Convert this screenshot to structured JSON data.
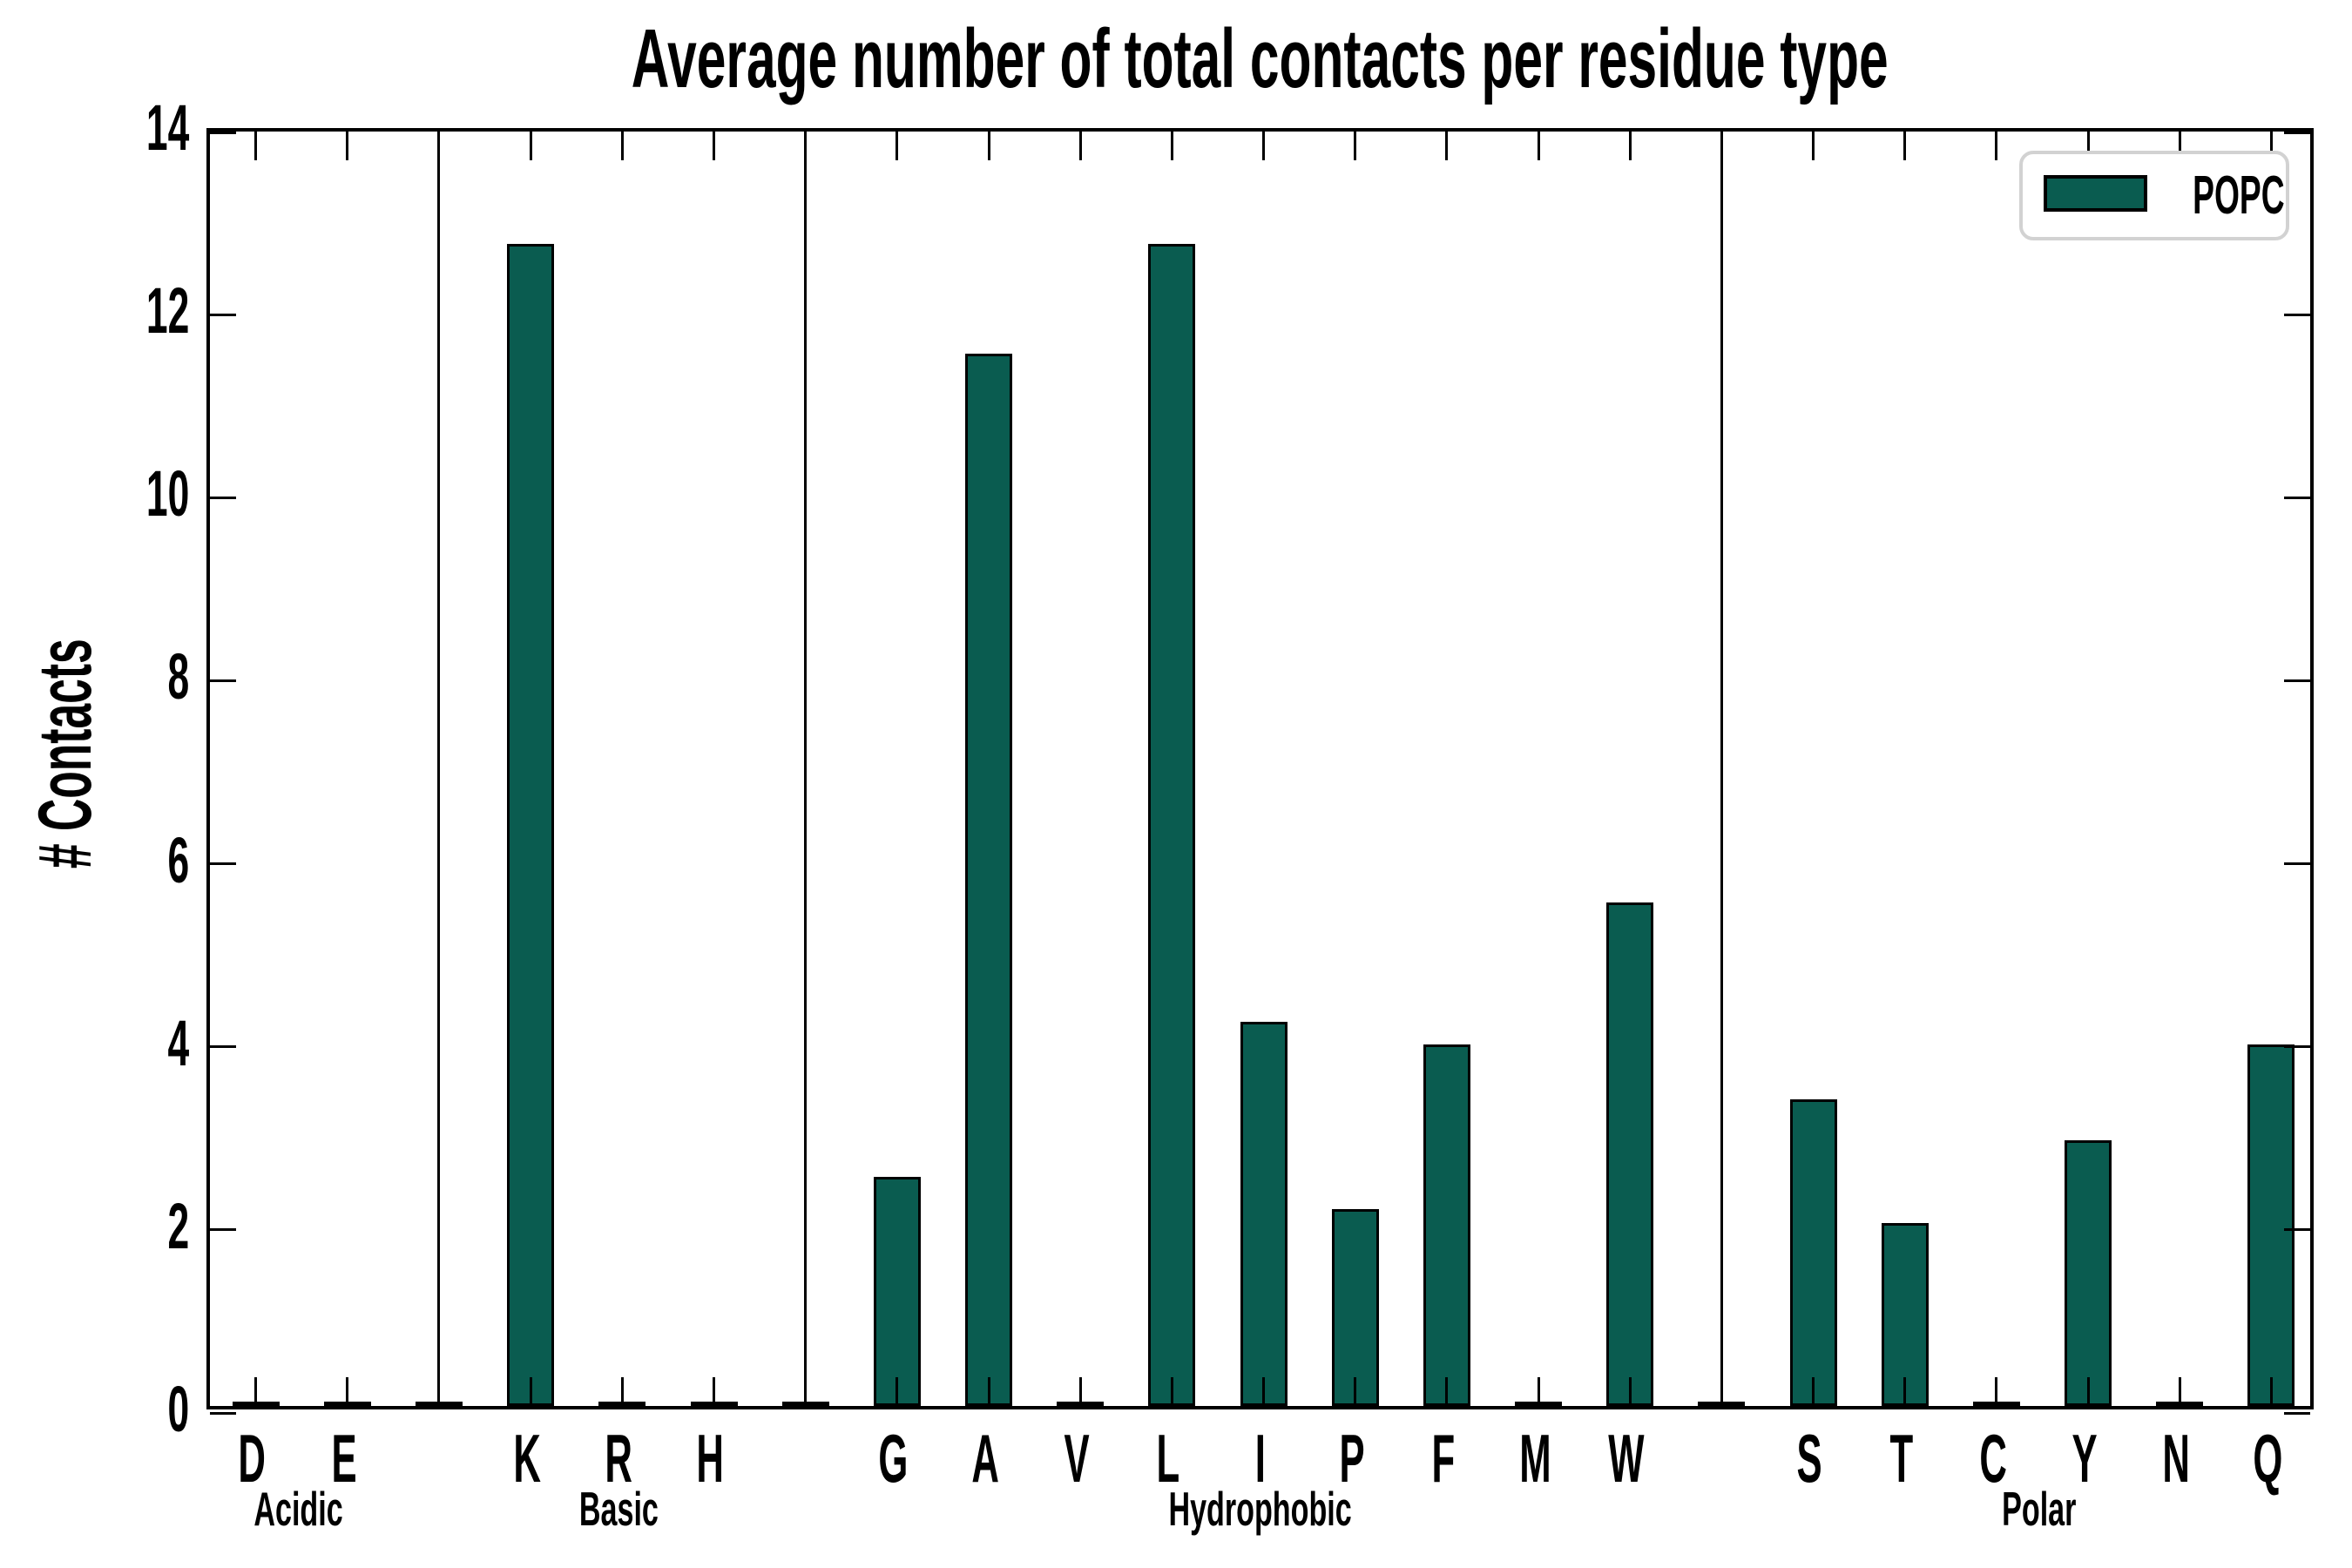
{
  "title": "Average number of total contacts per residue type",
  "ylabel": "# Contacts",
  "legend": {
    "label": "POPC"
  },
  "colors": {
    "bar_fill": "#0a5c50",
    "bar_edge": "#000000",
    "legend_border": "#d2d2d2"
  },
  "chart_data": {
    "type": "bar",
    "title": "Average number of total contacts per residue type",
    "xlabel": "",
    "ylabel": "# Contacts",
    "ylim": [
      0,
      14
    ],
    "yticks": [
      0,
      2,
      4,
      6,
      8,
      10,
      12,
      14
    ],
    "grid": false,
    "legend_position": "upper right",
    "series_name": "POPC",
    "groups": [
      {
        "label": "Acidic",
        "categories": [
          "D",
          "E"
        ],
        "values": [
          0.04,
          0.04
        ]
      },
      {
        "label": "Basic",
        "categories": [
          "K",
          "R",
          "H"
        ],
        "values": [
          12.7,
          0.04,
          0.04
        ]
      },
      {
        "label": "Hydrophobic",
        "categories": [
          "G",
          "A",
          "V",
          "L",
          "I",
          "P",
          "F",
          "M",
          "W"
        ],
        "values": [
          2.5,
          11.5,
          0.04,
          12.7,
          4.2,
          2.15,
          3.95,
          0.04,
          5.5
        ]
      },
      {
        "label": "Polar",
        "categories": [
          "S",
          "T",
          "C",
          "Y",
          "N",
          "Q"
        ],
        "values": [
          3.35,
          2.0,
          0.04,
          2.9,
          0.04,
          3.95
        ]
      }
    ]
  }
}
